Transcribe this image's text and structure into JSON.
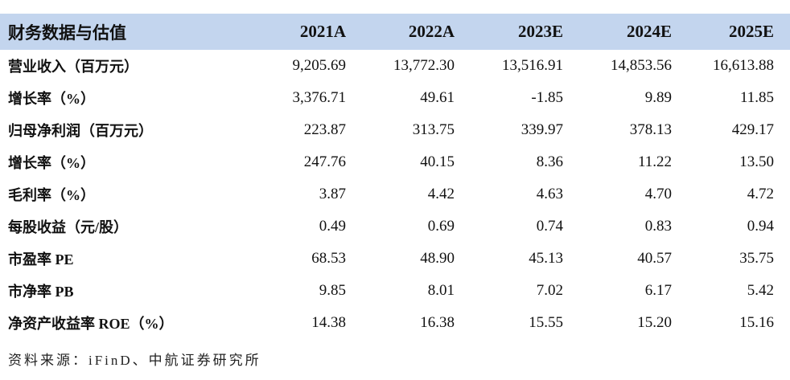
{
  "table": {
    "title": "财务数据与估值",
    "columns": [
      "2021A",
      "2022A",
      "2023E",
      "2024E",
      "2025E"
    ],
    "rows": [
      {
        "label": "营业收入（百万元）",
        "values": [
          "9,205.69",
          "13,772.30",
          "13,516.91",
          "14,853.56",
          "16,613.88"
        ]
      },
      {
        "label": "增长率（%）",
        "values": [
          "3,376.71",
          "49.61",
          "-1.85",
          "9.89",
          "11.85"
        ]
      },
      {
        "label": "归母净利润（百万元）",
        "values": [
          "223.87",
          "313.75",
          "339.97",
          "378.13",
          "429.17"
        ]
      },
      {
        "label": "增长率（%）",
        "values": [
          "247.76",
          "40.15",
          "8.36",
          "11.22",
          "13.50"
        ]
      },
      {
        "label": "毛利率（%）",
        "values": [
          "3.87",
          "4.42",
          "4.63",
          "4.70",
          "4.72"
        ]
      },
      {
        "label": "每股收益（元/股）",
        "values": [
          "0.49",
          "0.69",
          "0.74",
          "0.83",
          "0.94"
        ]
      },
      {
        "label": "市盈率 PE",
        "values": [
          "68.53",
          "48.90",
          "45.13",
          "40.57",
          "35.75"
        ]
      },
      {
        "label": "市净率 PB",
        "values": [
          "9.85",
          "8.01",
          "7.02",
          "6.17",
          "5.42"
        ]
      },
      {
        "label": "净资产收益率 ROE（%）",
        "values": [
          "14.38",
          "16.38",
          "15.55",
          "15.20",
          "15.16"
        ]
      }
    ],
    "source_note": "资料来源：iFinD、中航证券研究所",
    "colors": {
      "header_bg": "#C3D5EE",
      "text": "#111111"
    }
  }
}
